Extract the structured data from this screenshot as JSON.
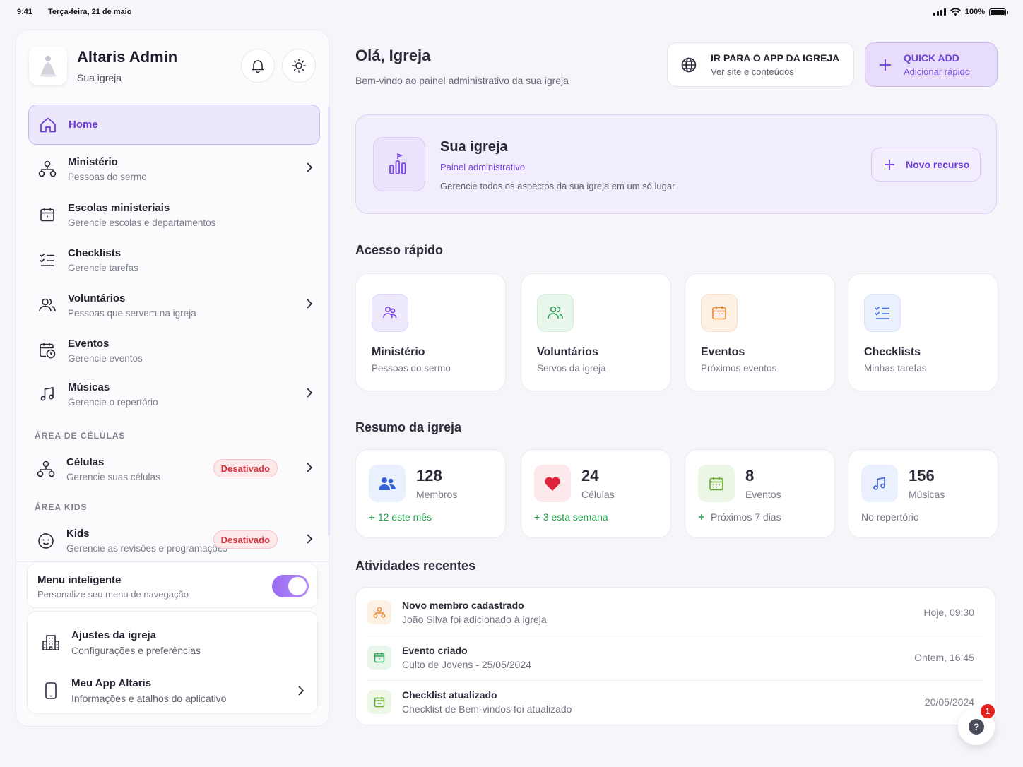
{
  "status_bar": {
    "time": "9:41",
    "date": "Terça-feira, 21 de maio",
    "battery": "100%"
  },
  "sidebar": {
    "app_name": "Altaris Admin",
    "church": "Sua igreja",
    "home_label": "Home",
    "items": [
      {
        "title": "Ministério",
        "subtitle": "Pessoas do sermo"
      },
      {
        "title": "Escolas ministeriais",
        "subtitle": "Gerencie escolas e departamentos"
      },
      {
        "title": "Checklists",
        "subtitle": "Gerencie tarefas"
      },
      {
        "title": "Voluntários",
        "subtitle": "Pessoas que servem na igreja"
      },
      {
        "title": "Eventos",
        "subtitle": "Gerencie eventos"
      },
      {
        "title": "Músicas",
        "subtitle": "Gerencie o repertório"
      }
    ],
    "cells_section": "ÁREA DE CÉLULAS",
    "cells": {
      "title": "Células",
      "subtitle": "Gerencie suas células",
      "badge": "Desativado"
    },
    "kids_section": "ÁREA KIDS",
    "kids": {
      "title": "Kids",
      "subtitle": "Gerencie as revisões e programações",
      "badge": "Desativado"
    },
    "smart_menu": {
      "title": "Menu inteligente",
      "subtitle": "Personalize seu menu de navegação",
      "enabled": true
    },
    "settings": {
      "title": "Ajustes da igreja",
      "subtitle": "Configurações e preferências"
    },
    "my_app": {
      "title": "Meu App Altaris",
      "subtitle": "Informações e atalhos do aplicativo"
    }
  },
  "header": {
    "greeting": "Olá, Igreja",
    "welcome": "Bem-vindo ao painel administrativo da sua igreja",
    "app_button": {
      "title": "IR PARA O APP DA IGREJA",
      "subtitle": "Ver site e conteúdos"
    },
    "quick_add": {
      "title": "QUICK ADD",
      "subtitle": "Adicionar rápido"
    }
  },
  "hero": {
    "title": "Sua igreja",
    "subtitle": "Painel administrativo",
    "description": "Gerencie todos os aspectos da sua igreja em um só lugar",
    "button": "Novo recurso"
  },
  "quick_access": {
    "title": "Acesso rápido",
    "cards": [
      {
        "title": "Ministério",
        "subtitle": "Pessoas do sermo"
      },
      {
        "title": "Voluntários",
        "subtitle": "Servos da igreja"
      },
      {
        "title": "Eventos",
        "subtitle": "Próximos eventos"
      },
      {
        "title": "Checklists",
        "subtitle": "Minhas tarefas"
      }
    ]
  },
  "summary": {
    "title": "Resumo da igreja",
    "cards": [
      {
        "value": "128",
        "label": "Membros",
        "note": "+-12 este mês"
      },
      {
        "value": "24",
        "label": "Células",
        "note": "+-3 esta semana"
      },
      {
        "value": "8",
        "label": "Eventos",
        "note": "Próximos 7 dias"
      },
      {
        "value": "156",
        "label": "Músicas",
        "note": "No repertório"
      }
    ]
  },
  "activities": {
    "title": "Atividades recentes",
    "items": [
      {
        "title": "Novo membro cadastrado",
        "detail": "João Silva foi adicionado à igreja",
        "time": "Hoje, 09:30"
      },
      {
        "title": "Evento criado",
        "detail": "Culto de Jovens - 25/05/2024",
        "time": "Ontem, 16:45"
      },
      {
        "title": "Checklist atualizado",
        "detail": "Checklist de Bem-vindos foi atualizado",
        "time": "20/05/2024"
      }
    ]
  },
  "help": {
    "label": "?",
    "count": "1"
  },
  "colors": {
    "accent": "#6d3fd8",
    "danger": "#d8323f",
    "success": "#25a24c"
  }
}
